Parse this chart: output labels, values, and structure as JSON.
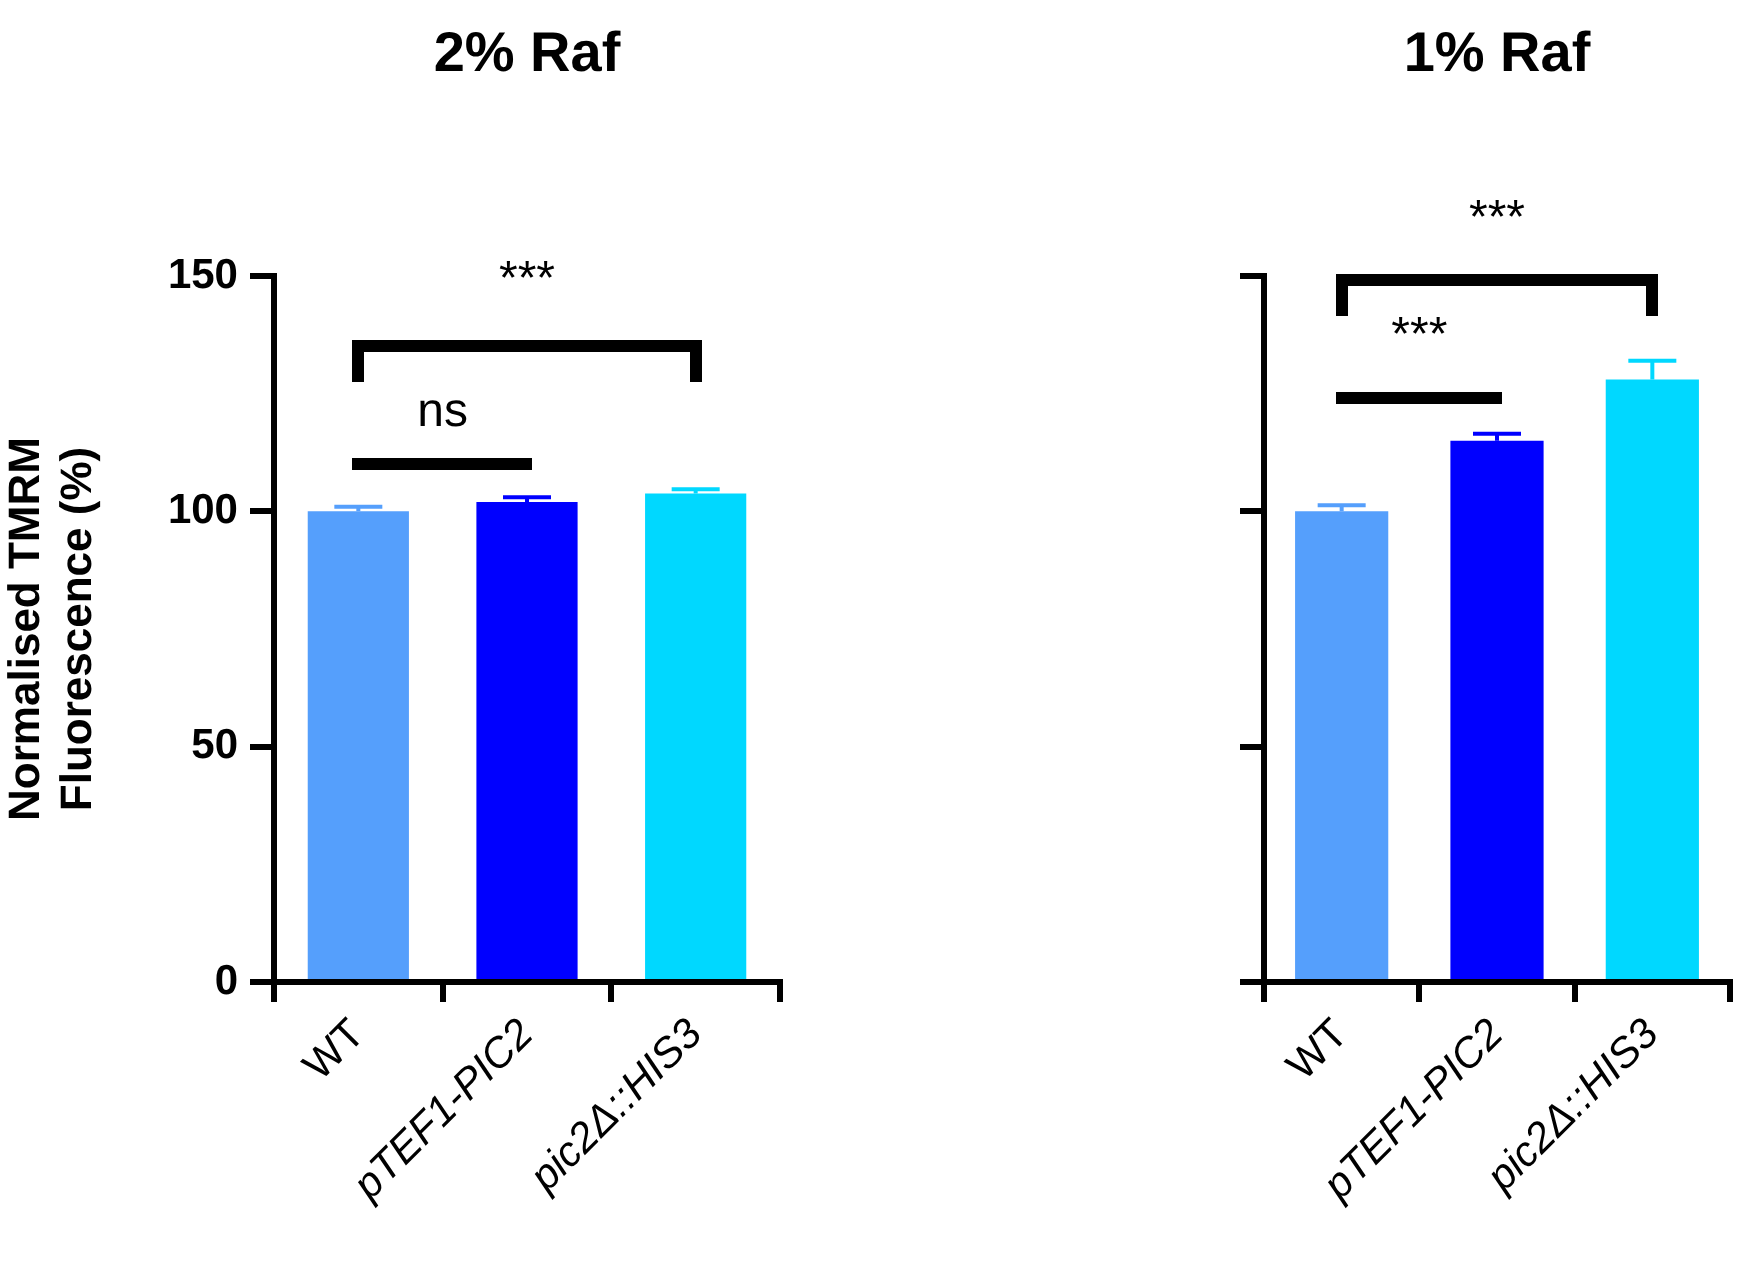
{
  "chart_data": [
    {
      "type": "bar",
      "title": "2% Raf",
      "ylabel": "Normalised TMRM Fluorescence (%)",
      "categories": [
        "WT",
        "pTEF1-PIC2",
        "pic2Δ::HIS3"
      ],
      "values": [
        100,
        102,
        103.8
      ],
      "colors": [
        "#559ffc",
        "#0000ff",
        "#00d8ff"
      ],
      "errors": [
        [
          100,
          101
        ],
        [
          102,
          103
        ],
        [
          103.8,
          104.7
        ]
      ],
      "ylim": [
        0,
        150
      ],
      "yticks": [
        0,
        50,
        100,
        150
      ],
      "annotations": [
        "ns",
        "***"
      ]
    },
    {
      "type": "bar",
      "title": "1% Raf",
      "categories": [
        "WT",
        "pTEF1-PIC2",
        "pic2Δ::HIS3"
      ],
      "values": [
        100,
        115,
        128
      ],
      "colors": [
        "#559ffc",
        "#0000ff",
        "#00d8ff"
      ],
      "errors": [
        [
          100,
          101.3
        ],
        [
          115,
          116.5
        ],
        [
          128,
          132
        ]
      ],
      "ylim": [
        0,
        150
      ],
      "yticks": [
        0,
        50,
        100,
        150
      ],
      "tick_labels": "x",
      "annotations": [
        "***",
        "***"
      ]
    }
  ]
}
